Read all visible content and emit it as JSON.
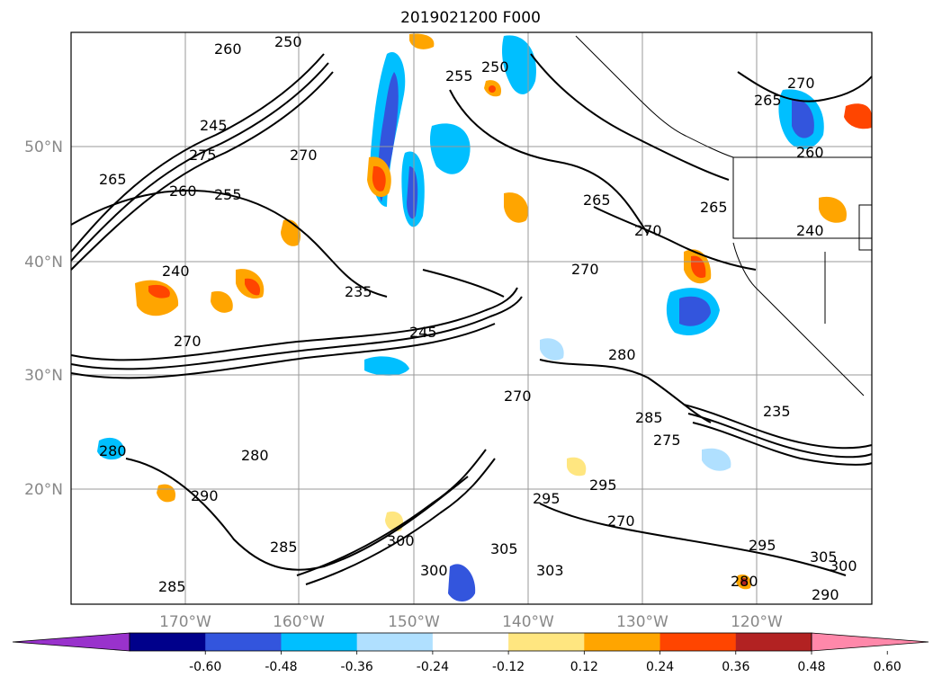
{
  "title": "2019021200 F000",
  "map": {
    "lat_ticks": [
      "50°N",
      "40°N",
      "30°N",
      "20°N"
    ],
    "lon_ticks": [
      "170°W",
      "160°W",
      "150°W",
      "140°W",
      "130°W",
      "120°W"
    ],
    "contour_labels": [
      "260",
      "250",
      "255",
      "250",
      "265",
      "270",
      "245",
      "275",
      "265",
      "260",
      "255",
      "270",
      "265",
      "260",
      "265",
      "270",
      "240",
      "270",
      "240",
      "235",
      "245",
      "270",
      "280",
      "270",
      "285",
      "275",
      "235",
      "280",
      "295",
      "280",
      "270",
      "300",
      "300",
      "305",
      "303",
      "290",
      "285",
      "295",
      "305",
      "300",
      "280",
      "295",
      "290",
      "285"
    ]
  },
  "colorbar": {
    "tick_labels": [
      "-0.60",
      "-0.48",
      "-0.36",
      "-0.24",
      "-0.12",
      "0.12",
      "0.24",
      "0.36",
      "0.48",
      "0.60"
    ],
    "colors": [
      "#9932cc",
      "#00008b",
      "#3355dd",
      "#00bfff",
      "#b0e0ff",
      "#ffffff",
      "#ffe680",
      "#ffa500",
      "#ff4500",
      "#b22222",
      "#ff88aa"
    ]
  }
}
